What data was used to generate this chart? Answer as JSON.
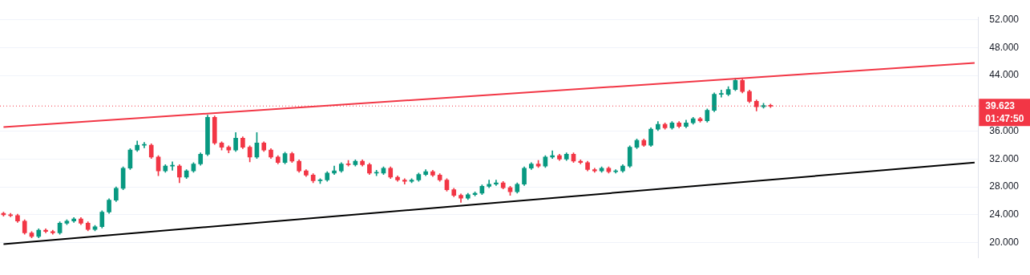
{
  "chart_data": {
    "type": "candlestick",
    "categories": [
      null,
      null,
      null,
      null,
      null,
      null,
      null,
      null,
      null,
      null,
      null,
      null,
      null,
      null,
      null,
      null,
      null,
      null,
      null,
      null,
      null,
      null,
      null,
      null,
      null,
      null,
      null,
      null,
      null,
      null,
      null,
      null,
      null,
      null,
      null,
      null,
      null,
      null,
      null,
      null,
      null,
      null,
      null,
      null,
      null,
      null,
      null,
      null,
      null,
      null,
      null,
      null,
      null,
      null,
      null,
      null,
      null,
      null,
      null,
      null,
      null,
      null,
      null,
      null,
      null,
      null,
      null,
      null,
      null,
      null,
      null,
      null,
      null,
      null,
      null,
      null,
      null,
      null,
      null,
      null,
      null,
      null,
      null,
      null,
      null,
      null,
      null,
      null,
      null,
      null,
      null,
      null,
      null,
      null,
      null,
      null,
      null,
      null,
      null,
      null,
      null,
      null,
      null,
      null,
      null,
      null,
      null,
      null,
      null,
      null,
      null,
      null,
      null,
      null,
      null,
      null,
      null,
      null,
      null,
      null,
      null,
      null,
      null,
      null,
      null,
      null,
      null,
      null,
      null,
      null,
      null,
      null,
      null,
      null,
      null,
      null,
      null,
      null,
      null
    ],
    "ohlc": [
      [
        24.2,
        24.4,
        23.8,
        24.0
      ],
      [
        24.0,
        24.2,
        23.7,
        23.9
      ],
      [
        23.9,
        24.1,
        22.9,
        23.1
      ],
      [
        23.1,
        23.3,
        21.2,
        21.4
      ],
      [
        21.4,
        21.6,
        20.7,
        20.9
      ],
      [
        20.9,
        22.0,
        20.7,
        21.8
      ],
      [
        21.8,
        22.0,
        21.4,
        21.6
      ],
      [
        21.6,
        21.8,
        21.2,
        21.4
      ],
      [
        21.4,
        23.0,
        21.2,
        22.8
      ],
      [
        22.8,
        23.3,
        22.6,
        23.1
      ],
      [
        23.1,
        23.6,
        22.9,
        23.4
      ],
      [
        23.4,
        23.6,
        22.6,
        22.8
      ],
      [
        22.8,
        23.0,
        21.7,
        21.9
      ],
      [
        21.9,
        22.5,
        21.7,
        22.3
      ],
      [
        22.3,
        24.6,
        22.1,
        24.4
      ],
      [
        24.4,
        26.3,
        24.2,
        26.1
      ],
      [
        26.1,
        28.0,
        25.9,
        27.8
      ],
      [
        27.8,
        30.9,
        27.6,
        30.7
      ],
      [
        30.7,
        33.5,
        30.5,
        33.3
      ],
      [
        33.3,
        34.6,
        33.1,
        34.0
      ],
      [
        34.0,
        34.4,
        33.6,
        34.0
      ],
      [
        34.0,
        34.2,
        32.1,
        32.3
      ],
      [
        32.3,
        32.5,
        29.6,
        30.3
      ],
      [
        30.3,
        31.2,
        30.1,
        31.0
      ],
      [
        31.0,
        31.6,
        30.4,
        31.0
      ],
      [
        31.0,
        31.2,
        28.6,
        29.4
      ],
      [
        29.4,
        30.5,
        29.2,
        30.3
      ],
      [
        30.3,
        31.5,
        30.1,
        31.3
      ],
      [
        31.3,
        32.9,
        31.1,
        32.7
      ],
      [
        32.7,
        38.3,
        32.5,
        38.0
      ],
      [
        38.0,
        38.2,
        34.1,
        34.3
      ],
      [
        34.3,
        34.5,
        33.3,
        33.7
      ],
      [
        33.7,
        33.9,
        32.9,
        33.3
      ],
      [
        33.3,
        35.8,
        33.1,
        35.0
      ],
      [
        35.0,
        35.2,
        33.5,
        33.7
      ],
      [
        33.7,
        33.9,
        31.6,
        32.3
      ],
      [
        32.3,
        35.8,
        32.1,
        34.3
      ],
      [
        34.3,
        34.5,
        33.1,
        33.3
      ],
      [
        33.3,
        33.5,
        32.1,
        32.3
      ],
      [
        32.3,
        32.5,
        31.3,
        31.5
      ],
      [
        31.5,
        33.0,
        31.3,
        32.8
      ],
      [
        32.8,
        33.0,
        31.5,
        31.7
      ],
      [
        31.7,
        31.9,
        30.1,
        30.3
      ],
      [
        30.3,
        30.5,
        29.5,
        29.7
      ],
      [
        29.7,
        29.9,
        28.6,
        28.9
      ],
      [
        28.9,
        29.2,
        28.5,
        29.0
      ],
      [
        29.0,
        30.2,
        28.8,
        30.0
      ],
      [
        30.0,
        31.0,
        29.8,
        30.3
      ],
      [
        30.3,
        31.5,
        30.1,
        31.3
      ],
      [
        31.3,
        31.8,
        31.0,
        31.2
      ],
      [
        31.2,
        31.9,
        31.0,
        31.7
      ],
      [
        31.7,
        31.9,
        31.0,
        31.2
      ],
      [
        31.2,
        31.4,
        29.8,
        30.0
      ],
      [
        30.0,
        30.4,
        29.6,
        30.0
      ],
      [
        30.0,
        30.9,
        29.8,
        30.7
      ],
      [
        30.7,
        30.9,
        29.2,
        29.4
      ],
      [
        29.4,
        29.6,
        28.8,
        29.0
      ],
      [
        29.0,
        29.2,
        28.4,
        28.8
      ],
      [
        28.8,
        29.2,
        28.6,
        29.0
      ],
      [
        29.0,
        30.0,
        28.8,
        29.8
      ],
      [
        29.8,
        30.5,
        29.6,
        30.2
      ],
      [
        30.2,
        30.4,
        29.5,
        29.7
      ],
      [
        29.7,
        29.9,
        28.8,
        29.0
      ],
      [
        29.0,
        29.2,
        27.4,
        27.6
      ],
      [
        27.6,
        27.8,
        26.6,
        26.8
      ],
      [
        26.8,
        27.0,
        25.8,
        26.4
      ],
      [
        26.4,
        27.1,
        26.2,
        26.9
      ],
      [
        26.9,
        27.3,
        26.7,
        27.1
      ],
      [
        27.1,
        28.3,
        26.9,
        28.1
      ],
      [
        28.1,
        29.0,
        27.9,
        28.4
      ],
      [
        28.4,
        29.0,
        28.2,
        28.6
      ],
      [
        28.6,
        28.8,
        27.7,
        27.9
      ],
      [
        27.9,
        28.1,
        26.8,
        27.3
      ],
      [
        27.3,
        28.6,
        27.1,
        28.4
      ],
      [
        28.4,
        30.9,
        28.2,
        30.7
      ],
      [
        30.7,
        31.5,
        30.5,
        31.3
      ],
      [
        31.3,
        31.8,
        30.8,
        31.0
      ],
      [
        31.0,
        32.5,
        30.8,
        32.3
      ],
      [
        32.3,
        33.2,
        32.1,
        32.5
      ],
      [
        32.5,
        32.7,
        31.8,
        32.0
      ],
      [
        32.0,
        32.9,
        31.8,
        32.7
      ],
      [
        32.7,
        32.9,
        31.5,
        31.7
      ],
      [
        31.7,
        31.9,
        31.3,
        31.5
      ],
      [
        31.5,
        31.7,
        30.3,
        30.5
      ],
      [
        30.5,
        30.7,
        30.1,
        30.3
      ],
      [
        30.3,
        30.9,
        30.1,
        30.7
      ],
      [
        30.7,
        30.9,
        30.0,
        30.2
      ],
      [
        30.2,
        30.5,
        30.0,
        30.3
      ],
      [
        30.3,
        31.2,
        30.1,
        31.0
      ],
      [
        31.0,
        33.9,
        30.8,
        33.7
      ],
      [
        33.7,
        34.9,
        33.5,
        34.7
      ],
      [
        34.7,
        34.9,
        33.8,
        34.0
      ],
      [
        34.0,
        36.5,
        33.8,
        36.3
      ],
      [
        36.3,
        37.4,
        36.1,
        37.0
      ],
      [
        37.0,
        37.2,
        36.3,
        36.5
      ],
      [
        36.5,
        37.4,
        36.3,
        37.2
      ],
      [
        37.2,
        37.4,
        36.5,
        36.7
      ],
      [
        36.7,
        37.6,
        36.5,
        37.2
      ],
      [
        37.2,
        38.0,
        37.0,
        37.8
      ],
      [
        37.8,
        38.0,
        37.3,
        37.5
      ],
      [
        37.5,
        39.2,
        37.3,
        39.0
      ],
      [
        39.0,
        41.5,
        38.8,
        41.3
      ],
      [
        41.3,
        41.9,
        40.9,
        41.3
      ],
      [
        41.3,
        42.4,
        41.1,
        42.0
      ],
      [
        42.0,
        43.6,
        41.8,
        43.3
      ],
      [
        43.3,
        43.5,
        41.5,
        41.7
      ],
      [
        41.7,
        41.9,
        40.1,
        40.3
      ],
      [
        40.3,
        40.5,
        38.9,
        39.5
      ],
      [
        39.5,
        40.0,
        39.3,
        39.7
      ],
      [
        39.7,
        39.9,
        39.4,
        39.6
      ],
      null,
      null,
      null,
      null,
      null,
      null,
      null,
      null,
      null,
      null,
      null,
      null,
      null,
      null,
      null,
      null,
      null,
      null,
      null,
      null,
      null,
      null,
      null,
      null,
      null,
      null,
      null,
      null,
      null
    ],
    "colors": [
      "#f23645",
      "#f23645",
      "#f23645",
      "#f23645",
      "#f23645",
      "#089981",
      "#f23645",
      "#f23645",
      "#089981",
      "#089981",
      "#089981",
      "#f23645",
      "#f23645",
      "#089981",
      "#089981",
      "#089981",
      "#089981",
      "#089981",
      "#089981",
      "#089981",
      "#089981",
      "#f23645",
      "#f23645",
      "#089981",
      "#089981",
      "#f23645",
      "#089981",
      "#089981",
      "#089981",
      "#089981",
      "#f23645",
      "#f23645",
      "#f23645",
      "#089981",
      "#f23645",
      "#f23645",
      "#089981",
      "#f23645",
      "#f23645",
      "#f23645",
      "#089981",
      "#f23645",
      "#f23645",
      "#f23645",
      "#f23645",
      "#089981",
      "#089981",
      "#089981",
      "#089981",
      "#f23645",
      "#089981",
      "#f23645",
      "#f23645",
      "#089981",
      "#089981",
      "#f23645",
      "#f23645",
      "#f23645",
      "#089981",
      "#089981",
      "#089981",
      "#f23645",
      "#f23645",
      "#f23645",
      "#f23645",
      "#f23645",
      "#089981",
      "#089981",
      "#089981",
      "#089981",
      "#089981",
      "#f23645",
      "#f23645",
      "#089981",
      "#089981",
      "#089981",
      "#f23645",
      "#089981",
      "#089981",
      "#f23645",
      "#089981",
      "#f23645",
      "#f23645",
      "#f23645",
      "#f23645",
      "#089981",
      "#f23645",
      "#089981",
      "#089981",
      "#089981",
      "#089981",
      "#f23645",
      "#089981",
      "#089981",
      "#f23645",
      "#089981",
      "#f23645",
      "#089981",
      "#089981",
      "#f23645",
      "#089981",
      "#089981",
      "#089981",
      "#089981",
      "#089981",
      "#f23645",
      "#f23645",
      "#f23645",
      "#089981",
      "#f23645",
      null,
      null,
      null,
      null,
      null,
      null,
      null,
      null,
      null,
      null,
      null,
      null,
      null,
      null,
      null,
      null,
      null,
      null,
      null,
      null,
      null,
      null,
      null,
      null,
      null,
      null,
      null,
      null,
      null
    ],
    "series": [
      {
        "type": "line",
        "color": "#f23645",
        "values": [
          36.6,
          null,
          null,
          null,
          null,
          null,
          null,
          null,
          null,
          null,
          null,
          null,
          null,
          null,
          null,
          null,
          null,
          null,
          null,
          null,
          null,
          null,
          null,
          null,
          null,
          null,
          null,
          null,
          null,
          null,
          null,
          null,
          null,
          null,
          null,
          null,
          null,
          null,
          null,
          null,
          null,
          null,
          null,
          null,
          null,
          null,
          null,
          null,
          null,
          null,
          null,
          null,
          null,
          null,
          null,
          null,
          null,
          null,
          null,
          null,
          null,
          null,
          null,
          null,
          null,
          null,
          null,
          null,
          null,
          null,
          null,
          null,
          null,
          null,
          null,
          null,
          null,
          null,
          null,
          null,
          null,
          null,
          null,
          null,
          null,
          null,
          null,
          null,
          null,
          null,
          null,
          null,
          null,
          null,
          null,
          null,
          null,
          null,
          null,
          null,
          null,
          null,
          null,
          null,
          null,
          null,
          null,
          null,
          null,
          null,
          null,
          null,
          null,
          null,
          null,
          null,
          null,
          null,
          null,
          null,
          null,
          null,
          null,
          null,
          null,
          null,
          null,
          null,
          null,
          null,
          null,
          null,
          null,
          null,
          null,
          null,
          null,
          null,
          45.8
        ]
      },
      {
        "type": "line",
        "color": "#000000",
        "values": [
          19.8,
          null,
          null,
          null,
          null,
          null,
          null,
          null,
          null,
          null,
          null,
          null,
          null,
          null,
          null,
          null,
          null,
          null,
          null,
          null,
          null,
          null,
          null,
          null,
          null,
          null,
          null,
          null,
          null,
          null,
          null,
          null,
          null,
          null,
          null,
          null,
          null,
          null,
          null,
          null,
          null,
          null,
          null,
          null,
          null,
          null,
          null,
          null,
          null,
          null,
          null,
          null,
          null,
          null,
          null,
          null,
          null,
          null,
          null,
          null,
          null,
          null,
          null,
          null,
          null,
          null,
          null,
          null,
          null,
          null,
          null,
          null,
          null,
          null,
          null,
          null,
          null,
          null,
          null,
          null,
          null,
          null,
          null,
          null,
          null,
          null,
          null,
          null,
          null,
          null,
          null,
          null,
          null,
          null,
          null,
          null,
          null,
          null,
          null,
          null,
          null,
          null,
          null,
          null,
          null,
          null,
          null,
          null,
          null,
          null,
          null,
          null,
          null,
          null,
          null,
          null,
          null,
          null,
          null,
          null,
          null,
          null,
          null,
          null,
          null,
          null,
          null,
          null,
          null,
          null,
          null,
          null,
          null,
          null,
          null,
          null,
          null,
          null,
          31.5
        ]
      }
    ],
    "ylim": [
      17.8,
      52.4
    ],
    "yticks": [
      {
        "value": 20,
        "label": "20.000"
      },
      {
        "value": 24,
        "label": "24.000"
      },
      {
        "value": 28,
        "label": "28.000"
      },
      {
        "value": 32,
        "label": "32.000"
      },
      {
        "value": 36,
        "label": "36.000"
      },
      {
        "value": 44,
        "label": "44.000"
      },
      {
        "value": 48,
        "label": "48.000"
      },
      {
        "value": 52,
        "label": "52.000"
      }
    ],
    "grid": "y",
    "tick_labels": "y",
    "legend": false,
    "ref_lines": [
      {
        "axis": "y",
        "value": 39.623,
        "label": "39.623",
        "color": "#f23645",
        "line_style": "dotted"
      }
    ],
    "annotations": [
      "01:47:50"
    ]
  }
}
